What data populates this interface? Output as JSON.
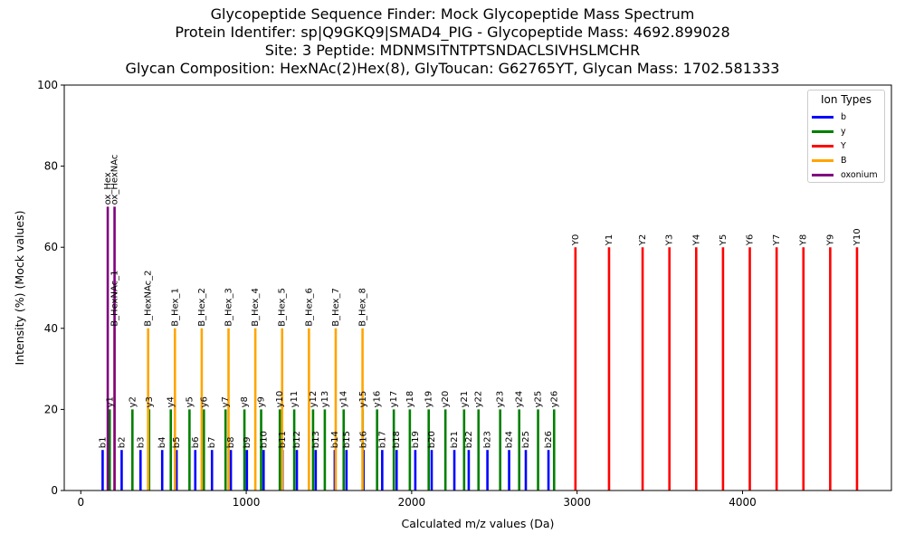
{
  "title_lines": [
    "Glycopeptide Sequence Finder: Mock Glycopeptide Mass Spectrum",
    "Protein Identifer: sp|Q9GKQ9|SMAD4_PIG - Glycopeptide Mass: 4692.899028",
    "Site: 3 Peptide: MDNMSITNTPTSNDACLSIVHSLMCHR",
    "Glycan Composition: HexNAc(2)Hex(8), GlyToucan: G62765YT, Glycan Mass: 1702.581333"
  ],
  "chart_data": {
    "type": "bar",
    "xlabel": "Calculated m/z values (Da)",
    "ylabel": "Intensity (%) (Mock values)",
    "xlim": [
      -100,
      4900
    ],
    "ylim": [
      0,
      100
    ],
    "xticks": [
      0,
      1000,
      2000,
      3000,
      4000
    ],
    "yticks": [
      0,
      20,
      40,
      60,
      80,
      100
    ],
    "grid": false,
    "legend": {
      "title": "Ion Types",
      "placement": "top-right",
      "entries": [
        "b",
        "y",
        "Y",
        "B",
        "oxonium"
      ]
    },
    "colors": {
      "b": "#0000ff",
      "y": "#008000",
      "Y": "#ff0000",
      "B": "#ffa500",
      "oxonium": "#800080"
    },
    "series": [
      {
        "name": "b",
        "intensity": 10,
        "points": [
          {
            "label": "b1",
            "x": 132
          },
          {
            "label": "b2",
            "x": 247
          },
          {
            "label": "b3",
            "x": 361
          },
          {
            "label": "b4",
            "x": 492
          },
          {
            "label": "b5",
            "x": 579
          },
          {
            "label": "b6",
            "x": 692
          },
          {
            "label": "b7",
            "x": 793
          },
          {
            "label": "b8",
            "x": 907
          },
          {
            "label": "b9",
            "x": 1004
          },
          {
            "label": "b10",
            "x": 1105
          },
          {
            "label": "b11",
            "x": 1219
          },
          {
            "label": "b12",
            "x": 1306
          },
          {
            "label": "b13",
            "x": 1420
          },
          {
            "label": "b14",
            "x": 1535
          },
          {
            "label": "b15",
            "x": 1606
          },
          {
            "label": "b16",
            "x": 1709
          },
          {
            "label": "b17",
            "x": 1822
          },
          {
            "label": "b18",
            "x": 1909
          },
          {
            "label": "b19",
            "x": 2022
          },
          {
            "label": "b20",
            "x": 2121
          },
          {
            "label": "b21",
            "x": 2258
          },
          {
            "label": "b22",
            "x": 2345
          },
          {
            "label": "b23",
            "x": 2458
          },
          {
            "label": "b24",
            "x": 2589
          },
          {
            "label": "b25",
            "x": 2690
          },
          {
            "label": "b26",
            "x": 2827
          }
        ]
      },
      {
        "name": "y",
        "intensity": 20,
        "points": [
          {
            "label": "y1",
            "x": 175
          },
          {
            "label": "y2",
            "x": 312
          },
          {
            "label": "y3",
            "x": 413
          },
          {
            "label": "y4",
            "x": 544
          },
          {
            "label": "y5",
            "x": 657
          },
          {
            "label": "y6",
            "x": 744
          },
          {
            "label": "y7",
            "x": 875
          },
          {
            "label": "y8",
            "x": 989
          },
          {
            "label": "y9",
            "x": 1090
          },
          {
            "label": "y10",
            "x": 1203
          },
          {
            "label": "y11",
            "x": 1290
          },
          {
            "label": "y12",
            "x": 1404
          },
          {
            "label": "y13",
            "x": 1475
          },
          {
            "label": "y14",
            "x": 1589
          },
          {
            "label": "y15",
            "x": 1704
          },
          {
            "label": "y16",
            "x": 1791
          },
          {
            "label": "y17",
            "x": 1892
          },
          {
            "label": "y18",
            "x": 1989
          },
          {
            "label": "y19",
            "x": 2103
          },
          {
            "label": "y20",
            "x": 2204
          },
          {
            "label": "y21",
            "x": 2317
          },
          {
            "label": "y22",
            "x": 2404
          },
          {
            "label": "y23",
            "x": 2535
          },
          {
            "label": "y24",
            "x": 2650
          },
          {
            "label": "y25",
            "x": 2764
          },
          {
            "label": "y26",
            "x": 2861
          }
        ]
      },
      {
        "name": "Y",
        "intensity": 60,
        "points": [
          {
            "label": "Y0",
            "x": 2990
          },
          {
            "label": "Y1",
            "x": 3193
          },
          {
            "label": "Y2",
            "x": 3396
          },
          {
            "label": "Y3",
            "x": 3558
          },
          {
            "label": "Y4",
            "x": 3720
          },
          {
            "label": "Y5",
            "x": 3882
          },
          {
            "label": "Y6",
            "x": 4044
          },
          {
            "label": "Y7",
            "x": 4206
          },
          {
            "label": "Y8",
            "x": 4368
          },
          {
            "label": "Y9",
            "x": 4530
          },
          {
            "label": "Y10",
            "x": 4692
          }
        ]
      },
      {
        "name": "B",
        "intensity": 40,
        "points": [
          {
            "label": "B_HexNAc_1",
            "x": 204
          },
          {
            "label": "B_HexNAc_2",
            "x": 407
          },
          {
            "label": "B_Hex_1",
            "x": 569
          },
          {
            "label": "B_Hex_2",
            "x": 731
          },
          {
            "label": "B_Hex_3",
            "x": 893
          },
          {
            "label": "B_Hex_4",
            "x": 1055
          },
          {
            "label": "B_Hex_5",
            "x": 1217
          },
          {
            "label": "B_Hex_6",
            "x": 1379
          },
          {
            "label": "B_Hex_7",
            "x": 1541
          },
          {
            "label": "B_Hex_8",
            "x": 1703
          }
        ]
      },
      {
        "name": "oxonium",
        "intensity": 70,
        "points": [
          {
            "label": "ox_Hex",
            "x": 163
          },
          {
            "label": "ox_HexNAc",
            "x": 204
          }
        ]
      }
    ]
  }
}
